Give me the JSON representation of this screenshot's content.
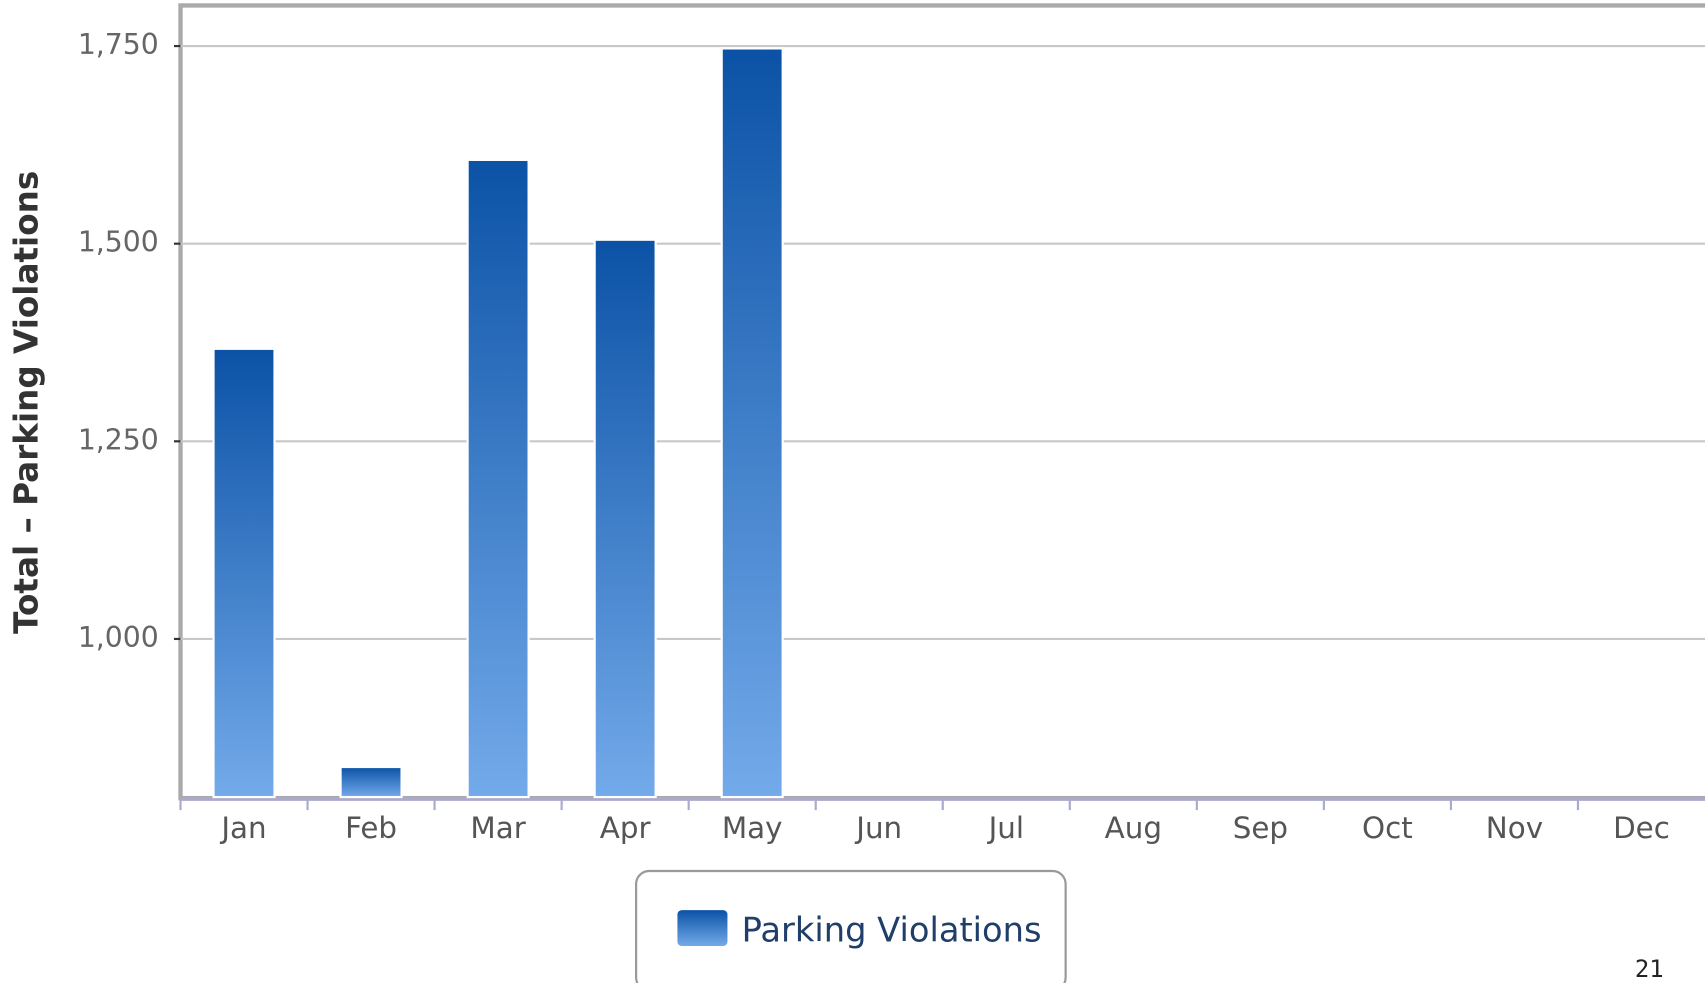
{
  "chart_data": {
    "type": "bar",
    "y_label": "Total – Parking Violations",
    "categories": [
      "Jan",
      "Feb",
      "Mar",
      "Apr",
      "May",
      "Jun",
      "Jul",
      "Aug",
      "Sep",
      "Oct",
      "Nov",
      "Dec"
    ],
    "series": [
      {
        "name": "Parking Violations",
        "color": "#1155aa",
        "values": [
          1367,
          838,
          1606,
          1505,
          1747,
          null,
          null,
          null,
          null,
          null,
          null,
          null
        ]
      }
    ],
    "ylim": [
      800,
      1800
    ],
    "yticks": [
      {
        "value": 1000,
        "label": "1,000"
      },
      {
        "value": 1250,
        "label": "1,250"
      },
      {
        "value": 1500,
        "label": "1,500"
      },
      {
        "value": 1750,
        "label": "1,750"
      }
    ],
    "grid": true,
    "legend": "bottom"
  },
  "page_number": "21"
}
